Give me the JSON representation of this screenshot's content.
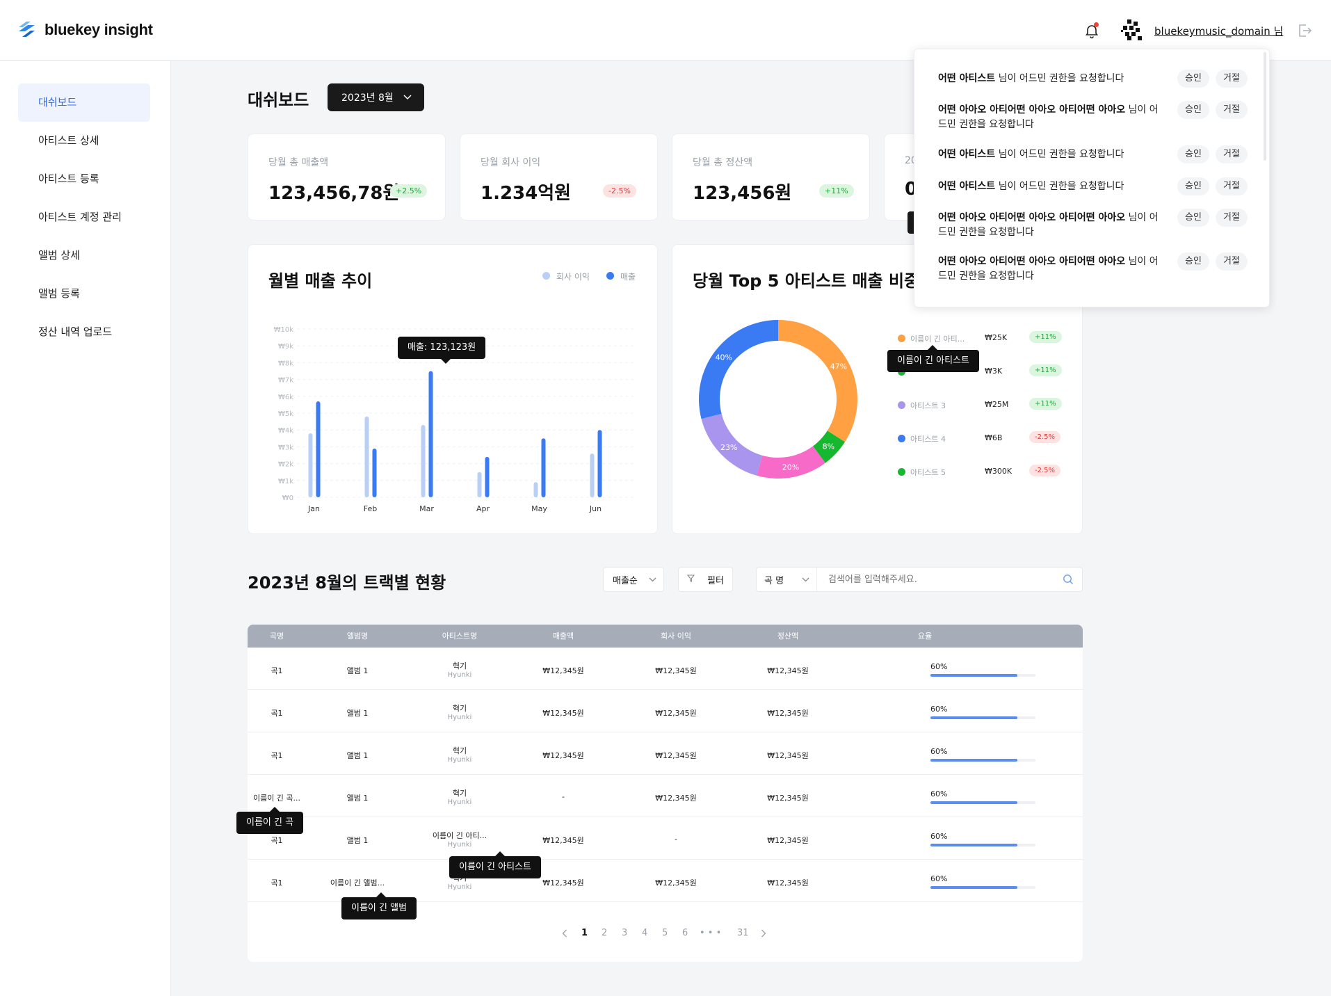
{
  "header": {
    "brand": "bluekey insight",
    "username": "bluekeymusic_domain 님"
  },
  "sidebar": {
    "items": [
      {
        "label": "대쉬보드",
        "active": true
      },
      {
        "label": "아티스트 상세"
      },
      {
        "label": "아티스트 등록"
      },
      {
        "label": "아티스트 계정 관리"
      },
      {
        "label": "앨범 상세"
      },
      {
        "label": "앨범 등록"
      },
      {
        "label": "정산 내역 업로드"
      }
    ]
  },
  "dashboard": {
    "title": "대쉬보드",
    "month_selector": "2023년 8월"
  },
  "stats": [
    {
      "label": "당월 총 매출액",
      "value": "123,456,78원",
      "change": "+2.5%",
      "trend": "up"
    },
    {
      "label": "당월 회사 이익",
      "value": "1.234억원",
      "change": "-2.5%",
      "trend": "down"
    },
    {
      "label": "당월 총 정산액",
      "value": "123,456원",
      "change": "+11%",
      "trend": "up"
    },
    {
      "label": "20",
      "value": "0",
      "change": "",
      "trend": ""
    }
  ],
  "monthly_chart": {
    "title": "월별 매출 추이",
    "legend": [
      {
        "name": "회사 이익",
        "color": "#b9cff5"
      },
      {
        "name": "매출",
        "color": "#3a7af3"
      }
    ],
    "tooltip": "매출: 123,123원"
  },
  "chart_data": [
    {
      "type": "bar",
      "title": "월별 매출 추이",
      "categories": [
        "Jan",
        "Feb",
        "Mar",
        "Apr",
        "May",
        "Jun"
      ],
      "y_ticks": [
        "₩0",
        "₩1k",
        "₩2k",
        "₩3k",
        "₩4k",
        "₩5k",
        "₩6k",
        "₩7k",
        "₩8k",
        "₩9k",
        "₩10k"
      ],
      "ylim": [
        0,
        10000
      ],
      "series": [
        {
          "name": "회사 이익",
          "values": [
            3800,
            4800,
            4300,
            1500,
            900,
            2600
          ]
        },
        {
          "name": "매출",
          "values": [
            5700,
            2900,
            7500,
            2400,
            3500,
            4000
          ]
        }
      ],
      "grid": true,
      "legend_position": "top-right"
    },
    {
      "type": "pie",
      "title": "당월 Top 5 아티스트 매출 비중",
      "slices": [
        {
          "label": "이름이 긴 아티...",
          "value": 47,
          "color": "#ffa043"
        },
        {
          "label": "",
          "value": 8,
          "color": "#16b82f"
        },
        {
          "label": "",
          "value": 20,
          "color": "#f86ac7"
        },
        {
          "label": "",
          "value": 23,
          "color": "#a995ee"
        },
        {
          "label": "",
          "value": 40,
          "color": "#3a7af3"
        }
      ]
    }
  ],
  "donut_chart": {
    "title": "당월 Top 5 아티스트 매출 비중",
    "slice_labels": [
      "47%",
      "8%",
      "20%",
      "23%",
      "40%"
    ],
    "legend": [
      {
        "name": "이름이 긴 아티...",
        "amount": "₩25K",
        "change": "+11%",
        "trend": "up",
        "color": "#ffa043"
      },
      {
        "name": "",
        "amount": "₩3K",
        "change": "+11%",
        "trend": "up",
        "color": "#16b82f"
      },
      {
        "name": "아티스트 3",
        "amount": "₩25M",
        "change": "+11%",
        "trend": "up",
        "color": "#a995ee"
      },
      {
        "name": "아티스트 4",
        "amount": "₩6B",
        "change": "-2.5%",
        "trend": "down",
        "color": "#3a7af3"
      },
      {
        "name": "아티스트 5",
        "amount": "₩300K",
        "change": "-2.5%",
        "trend": "down",
        "color": "#16b82f"
      }
    ],
    "tooltip": "이름이 긴 아티스트"
  },
  "tracks": {
    "title": "2023년 8월의 트랙별 현황",
    "sort_select": "매출순",
    "filter_label": "필터",
    "search_field_select": "곡 명",
    "search_placeholder": "검색어를 입력해주세요.",
    "columns": [
      "곡명",
      "앨범명",
      "아티스트명",
      "매출액",
      "회사 이익",
      "정산액",
      "요율"
    ],
    "rows": [
      {
        "song": "곡1",
        "album": "앨범 1",
        "artist": "혁기",
        "artist_sub": "Hyunki",
        "sales": "₩12,345원",
        "profit": "₩12,345원",
        "settle": "₩12,345원",
        "rate": "60%",
        "rate_value": 0.6
      },
      {
        "song": "곡1",
        "album": "앨범 1",
        "artist": "혁기",
        "artist_sub": "Hyunki",
        "sales": "₩12,345원",
        "profit": "₩12,345원",
        "settle": "₩12,345원",
        "rate": "60%",
        "rate_value": 0.6
      },
      {
        "song": "곡1",
        "album": "앨범 1",
        "artist": "혁기",
        "artist_sub": "Hyunki",
        "sales": "₩12,345원",
        "profit": "₩12,345원",
        "settle": "₩12,345원",
        "rate": "60%",
        "rate_value": 0.6
      },
      {
        "song": "이름이 긴 곡...",
        "album": "앨범 1",
        "artist": "혁기",
        "artist_sub": "Hyunki",
        "sales": "-",
        "profit": "₩12,345원",
        "settle": "₩12,345원",
        "rate": "60%",
        "rate_value": 0.6
      },
      {
        "song": "곡1",
        "album": "앨범 1",
        "artist": "이름이 긴 아티...",
        "artist_sub": "Hyunki",
        "sales": "₩12,345원",
        "profit": "-",
        "settle": "₩12,345원",
        "rate": "60%",
        "rate_value": 0.6
      },
      {
        "song": "곡1",
        "album": "이름이 긴 앨범...",
        "artist": "혁기",
        "artist_sub": "Hyunki",
        "sales": "₩12,345원",
        "profit": "₩12,345원",
        "settle": "₩12,345원",
        "rate": "60%",
        "rate_value": 0.6
      }
    ],
    "tooltips": {
      "song": "이름이 긴 곡",
      "artist": "이름이 긴 아티스트",
      "album": "이름이 긴 앨범"
    },
    "pagination": {
      "pages": [
        "1",
        "2",
        "3",
        "4",
        "5",
        "6"
      ],
      "ellipsis": "• • •",
      "last": "31",
      "current": "1"
    }
  },
  "notifications": {
    "items": [
      {
        "name": "어떤 아티스트",
        "text": " 님이 어드민 권한을 요청합니다"
      },
      {
        "name": "어떤 아아오 아티어떤 아아오 아티어떤 아아오",
        "text": " 님이 어드민 권한을 요청합니다"
      },
      {
        "name": "어떤 아티스트",
        "text": " 님이 어드민 권한을 요청합니다"
      },
      {
        "name": "어떤 아티스트",
        "text": " 님이 어드민 권한을 요청합니다"
      },
      {
        "name": "어떤 아아오 아티어떤 아아오 아티어떤 아아오",
        "text": " 님이 어드민 권한을 요청합니다"
      },
      {
        "name": "어떤 아아오 아티어떤 아아오 아티어떤 아아오",
        "text": " 님이 어드민 권한을 요청합니다"
      }
    ],
    "approve": "승인",
    "reject": "거절"
  }
}
